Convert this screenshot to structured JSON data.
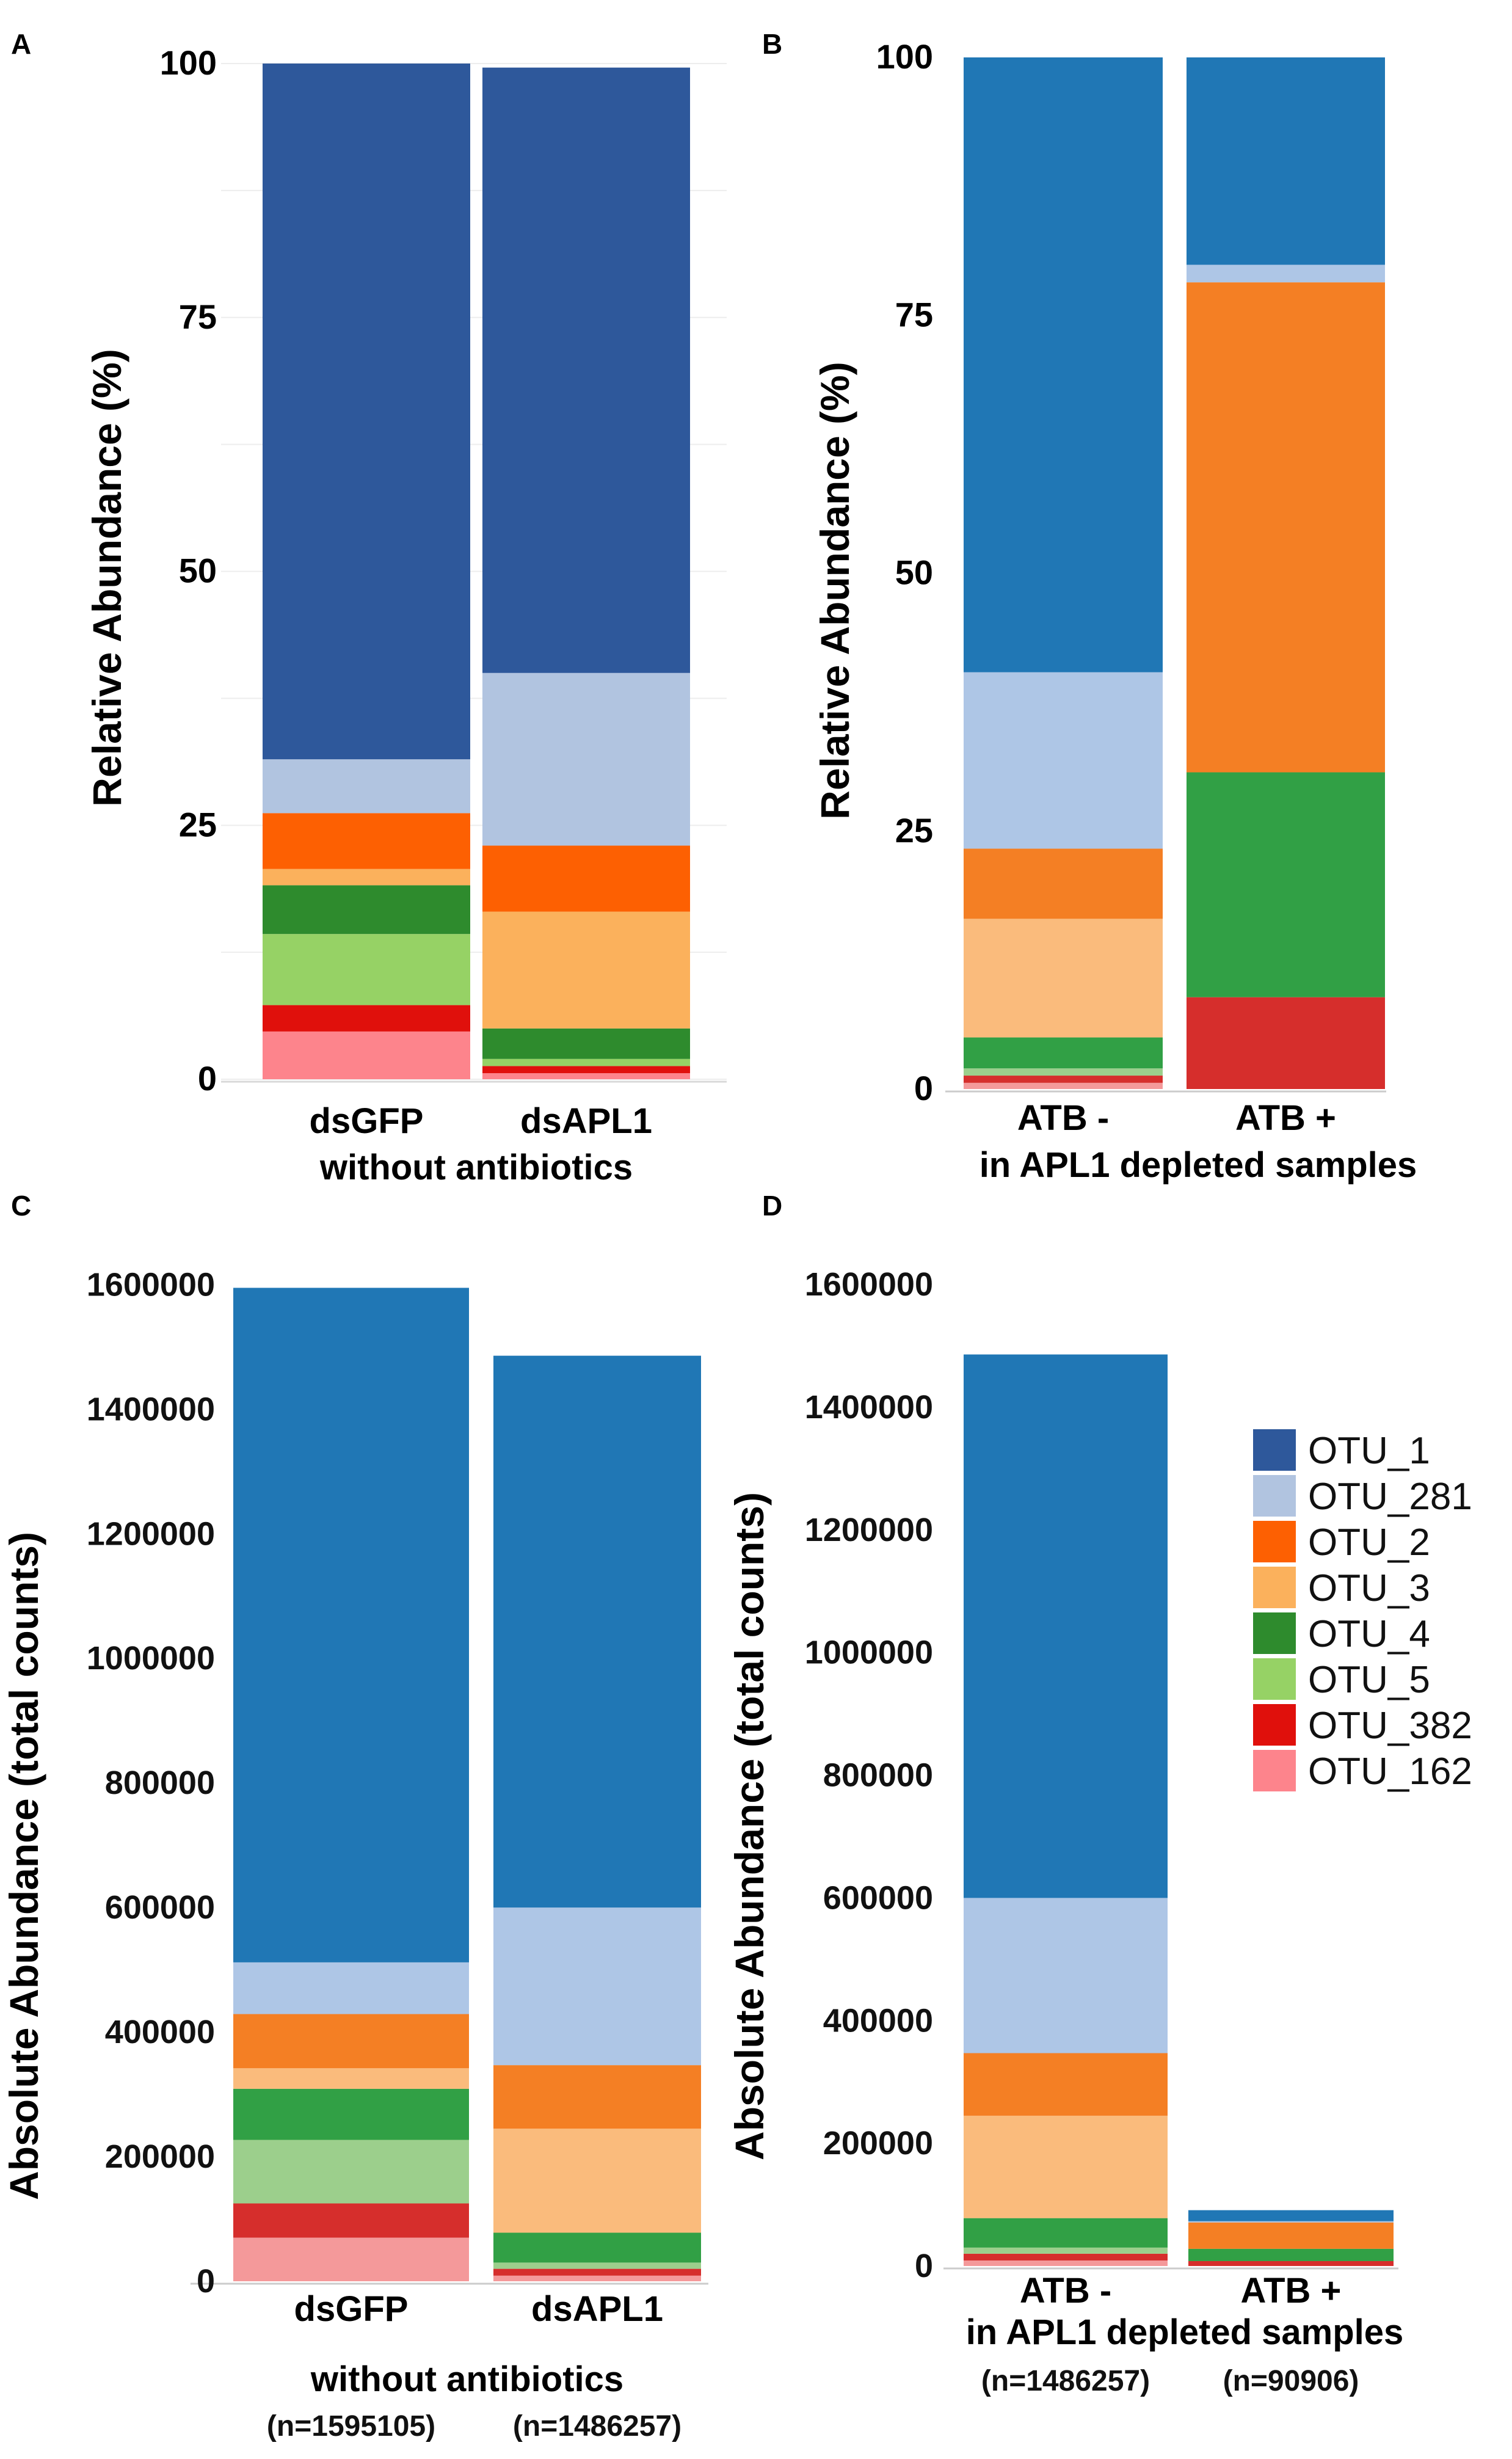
{
  "panels": {
    "A": "A",
    "B": "B",
    "C": "C",
    "D": "D"
  },
  "legend": [
    {
      "label": "OTU_1",
      "color": "#2e589b"
    },
    {
      "label": "OTU_281",
      "color": "#b1c4e0"
    },
    {
      "label": "OTU_2",
      "color": "#fd6002"
    },
    {
      "label": "OTU_3",
      "color": "#fbb15c"
    },
    {
      "label": "OTU_4",
      "color": "#2e8b2d"
    },
    {
      "label": "OTU_5",
      "color": "#96d265"
    },
    {
      "label": "OTU_382",
      "color": "#e0100c"
    },
    {
      "label": "OTU_162",
      "color": "#fd848c"
    }
  ],
  "chart_data": [
    {
      "id": "A",
      "type": "bar",
      "stacked": true,
      "ylabel": "Relative Abundance (%)",
      "ylim": [
        0,
        100
      ],
      "yticks": [
        "100",
        "75",
        "50",
        "25",
        "0"
      ],
      "xlabel": "without antibiotics",
      "categories": [
        "dsGFP",
        "dsAPL1"
      ],
      "series": [
        {
          "name": "OTU_162",
          "color": "#fd848c",
          "values": [
            4.7,
            0.6
          ]
        },
        {
          "name": "OTU_382",
          "color": "#e0100c",
          "values": [
            2.6,
            0.7
          ]
        },
        {
          "name": "OTU_5",
          "color": "#96d265",
          "values": [
            7.0,
            0.7
          ]
        },
        {
          "name": "OTU_4",
          "color": "#2e8b2d",
          "values": [
            4.8,
            3.0
          ]
        },
        {
          "name": "OTU_3",
          "color": "#fbb15c",
          "values": [
            1.6,
            11.5
          ]
        },
        {
          "name": "OTU_2",
          "color": "#fd6002",
          "values": [
            5.5,
            6.5
          ]
        },
        {
          "name": "OTU_281",
          "color": "#b1c4e0",
          "values": [
            5.3,
            17.0
          ]
        },
        {
          "name": "OTU_1",
          "color": "#2e589b",
          "values": [
            68.5,
            59.6
          ]
        }
      ]
    },
    {
      "id": "B",
      "type": "bar",
      "stacked": true,
      "ylabel": "Relative Abundance (%)",
      "ylim": [
        0,
        100
      ],
      "yticks": [
        "100",
        "75",
        "50",
        "25",
        "0"
      ],
      "xlabel": "in APL1 depleted samples",
      "categories": [
        "ATB -",
        "ATB +"
      ],
      "series": [
        {
          "name": "OTU_162",
          "color": "#f4999a",
          "values": [
            0.6,
            0.0
          ]
        },
        {
          "name": "OTU_382",
          "color": "#d62e2c",
          "values": [
            0.7,
            8.9
          ]
        },
        {
          "name": "OTU_5",
          "color": "#9ccf8c",
          "values": [
            0.7,
            0.0
          ]
        },
        {
          "name": "OTU_4",
          "color": "#31a045",
          "values": [
            3.0,
            21.8
          ]
        },
        {
          "name": "OTU_3",
          "color": "#fabb7c",
          "values": [
            11.5,
            0.0
          ]
        },
        {
          "name": "OTU_2",
          "color": "#f47f24",
          "values": [
            6.8,
            47.5
          ]
        },
        {
          "name": "OTU_281",
          "color": "#aec6e6",
          "values": [
            17.1,
            1.7
          ]
        },
        {
          "name": "OTU_1",
          "color": "#2077b5",
          "values": [
            59.6,
            20.1
          ]
        }
      ]
    },
    {
      "id": "C",
      "type": "bar",
      "stacked": true,
      "ylabel": "Absolute Abundance (total counts)",
      "ylim": [
        0,
        1620000
      ],
      "yticks": [
        "1600000",
        "1400000",
        "1200000",
        "1000000",
        "800000",
        "600000",
        "400000",
        "200000",
        "0"
      ],
      "xlabel": "without antibiotics",
      "categories": [
        "dsGFP",
        "dsAPL1"
      ],
      "counts": [
        "(n=1595105)",
        "(n=1486257)"
      ],
      "series": [
        {
          "name": "OTU_162",
          "color": "#f4999a",
          "values": [
            70000,
            9000
          ]
        },
        {
          "name": "OTU_382",
          "color": "#d62e2c",
          "values": [
            55000,
            11000
          ]
        },
        {
          "name": "OTU_5",
          "color": "#9ccf8c",
          "values": [
            102000,
            10000
          ]
        },
        {
          "name": "OTU_4",
          "color": "#31a045",
          "values": [
            82000,
            48000
          ]
        },
        {
          "name": "OTU_3",
          "color": "#fabb7c",
          "values": [
            33000,
            167000
          ]
        },
        {
          "name": "OTU_2",
          "color": "#f47f24",
          "values": [
            87000,
            102000
          ]
        },
        {
          "name": "OTU_281",
          "color": "#aec6e6",
          "values": [
            83000,
            253000
          ]
        },
        {
          "name": "OTU_1",
          "color": "#2077b5",
          "values": [
            1083000,
            886000
          ]
        }
      ]
    },
    {
      "id": "D",
      "type": "bar",
      "stacked": true,
      "ylabel": "Absolute Abundance (total counts)",
      "ylim": [
        0,
        1620000
      ],
      "yticks": [
        "1600000",
        "1400000",
        "1200000",
        "1000000",
        "800000",
        "600000",
        "400000",
        "200000",
        "0"
      ],
      "xlabel": "in APL1 depleted samples",
      "categories": [
        "ATB -",
        "ATB +"
      ],
      "counts": [
        "(n=1486257)",
        "(n=90906)"
      ],
      "series": [
        {
          "name": "OTU_162",
          "color": "#f4999a",
          "values": [
            9000,
            0
          ]
        },
        {
          "name": "OTU_382",
          "color": "#d62e2c",
          "values": [
            11000,
            8000
          ]
        },
        {
          "name": "OTU_5",
          "color": "#9ccf8c",
          "values": [
            10000,
            0
          ]
        },
        {
          "name": "OTU_4",
          "color": "#31a045",
          "values": [
            48000,
            20000
          ]
        },
        {
          "name": "OTU_3",
          "color": "#fabb7c",
          "values": [
            167000,
            0
          ]
        },
        {
          "name": "OTU_2",
          "color": "#f47f24",
          "values": [
            102000,
            43000
          ]
        },
        {
          "name": "OTU_281",
          "color": "#aec6e6",
          "values": [
            253000,
            2000
          ]
        },
        {
          "name": "OTU_1",
          "color": "#2077b5",
          "values": [
            886000,
            18000
          ]
        }
      ]
    }
  ]
}
